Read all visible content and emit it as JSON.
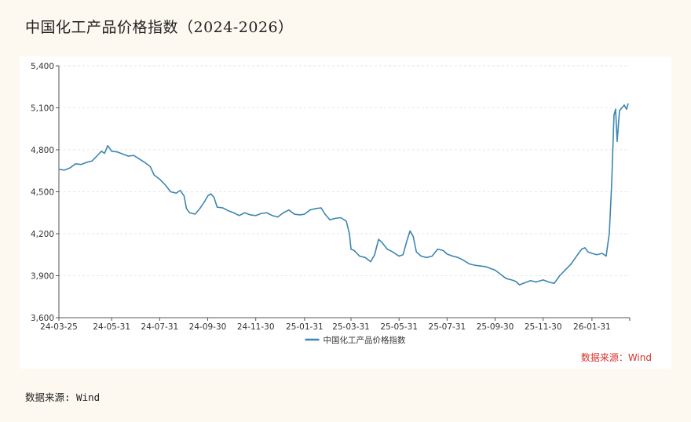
{
  "title": "中国化工产品价格指数（2024-2026）",
  "source_inner": "数据来源：Wind",
  "source_bottom": "数据来源: Wind",
  "colors": {
    "line": "#3d86b0",
    "axis": "#555555",
    "grid": "#e6e6e6",
    "source_inner": "#d9302c",
    "background": "#fdf8f0"
  },
  "chart_data": {
    "type": "line",
    "title": "",
    "xlabel": "",
    "ylabel": "",
    "ylim": [
      3600,
      5400
    ],
    "yticks": [
      3600,
      3900,
      4200,
      4500,
      4800,
      5100,
      5400
    ],
    "ytick_labels": [
      "3,600",
      "3,900",
      "4,200",
      "4,500",
      "4,800",
      "5,100",
      "5,400"
    ],
    "xlim": [
      "2024-03-25",
      "2026-03-20"
    ],
    "xtick_labels": [
      "24-03-25",
      "24-05-31",
      "24-07-31",
      "24-09-30",
      "24-11-30",
      "25-01-31",
      "25-03-31",
      "25-05-31",
      "25-07-31",
      "25-09-30",
      "25-11-30",
      "26-01-31"
    ],
    "xtick_dates": [
      "2024-03-25",
      "2024-05-31",
      "2024-07-31",
      "2024-09-30",
      "2024-11-30",
      "2025-01-31",
      "2025-03-31",
      "2025-05-31",
      "2025-07-31",
      "2025-09-30",
      "2025-11-30",
      "2026-01-31"
    ],
    "grid": true,
    "legend_position": "bottom-center",
    "series": [
      {
        "name": "中国化工产品价格指数",
        "color": "#3d86b0",
        "points": [
          [
            "2024-03-25",
            4660
          ],
          [
            "2024-04-01",
            4655
          ],
          [
            "2024-04-08",
            4670
          ],
          [
            "2024-04-15",
            4700
          ],
          [
            "2024-04-22",
            4695
          ],
          [
            "2024-04-29",
            4710
          ],
          [
            "2024-05-06",
            4720
          ],
          [
            "2024-05-13",
            4760
          ],
          [
            "2024-05-18",
            4790
          ],
          [
            "2024-05-22",
            4775
          ],
          [
            "2024-05-26",
            4830
          ],
          [
            "2024-05-31",
            4790
          ],
          [
            "2024-06-07",
            4785
          ],
          [
            "2024-06-14",
            4770
          ],
          [
            "2024-06-21",
            4755
          ],
          [
            "2024-06-28",
            4760
          ],
          [
            "2024-07-05",
            4735
          ],
          [
            "2024-07-12",
            4710
          ],
          [
            "2024-07-19",
            4680
          ],
          [
            "2024-07-24",
            4620
          ],
          [
            "2024-07-31",
            4590
          ],
          [
            "2024-08-07",
            4550
          ],
          [
            "2024-08-14",
            4500
          ],
          [
            "2024-08-21",
            4490
          ],
          [
            "2024-08-26",
            4510
          ],
          [
            "2024-08-31",
            4470
          ],
          [
            "2024-09-03",
            4380
          ],
          [
            "2024-09-07",
            4350
          ],
          [
            "2024-09-14",
            4340
          ],
          [
            "2024-09-20",
            4380
          ],
          [
            "2024-09-26",
            4430
          ],
          [
            "2024-09-30",
            4470
          ],
          [
            "2024-10-04",
            4485
          ],
          [
            "2024-10-08",
            4460
          ],
          [
            "2024-10-12",
            4390
          ],
          [
            "2024-10-19",
            4385
          ],
          [
            "2024-10-26",
            4365
          ],
          [
            "2024-11-02",
            4350
          ],
          [
            "2024-11-09",
            4330
          ],
          [
            "2024-11-16",
            4350
          ],
          [
            "2024-11-23",
            4335
          ],
          [
            "2024-11-30",
            4330
          ],
          [
            "2024-12-07",
            4345
          ],
          [
            "2024-12-14",
            4350
          ],
          [
            "2024-12-21",
            4330
          ],
          [
            "2024-12-28",
            4320
          ],
          [
            "2025-01-04",
            4350
          ],
          [
            "2025-01-11",
            4370
          ],
          [
            "2025-01-18",
            4340
          ],
          [
            "2025-01-25",
            4335
          ],
          [
            "2025-01-31",
            4340
          ],
          [
            "2025-02-07",
            4370
          ],
          [
            "2025-02-14",
            4380
          ],
          [
            "2025-02-21",
            4385
          ],
          [
            "2025-02-26",
            4340
          ],
          [
            "2025-03-04",
            4300
          ],
          [
            "2025-03-11",
            4310
          ],
          [
            "2025-03-18",
            4315
          ],
          [
            "2025-03-25",
            4290
          ],
          [
            "2025-03-29",
            4200
          ],
          [
            "2025-03-31",
            4090
          ],
          [
            "2025-04-04",
            4080
          ],
          [
            "2025-04-11",
            4040
          ],
          [
            "2025-04-18",
            4030
          ],
          [
            "2025-04-25",
            4000
          ],
          [
            "2025-04-30",
            4050
          ],
          [
            "2025-05-05",
            4160
          ],
          [
            "2025-05-09",
            4140
          ],
          [
            "2025-05-16",
            4090
          ],
          [
            "2025-05-23",
            4070
          ],
          [
            "2025-05-31",
            4040
          ],
          [
            "2025-06-05",
            4050
          ],
          [
            "2025-06-10",
            4150
          ],
          [
            "2025-06-14",
            4220
          ],
          [
            "2025-06-18",
            4180
          ],
          [
            "2025-06-22",
            4070
          ],
          [
            "2025-06-28",
            4040
          ],
          [
            "2025-07-05",
            4030
          ],
          [
            "2025-07-12",
            4040
          ],
          [
            "2025-07-19",
            4090
          ],
          [
            "2025-07-26",
            4080
          ],
          [
            "2025-07-31",
            4055
          ],
          [
            "2025-08-07",
            4040
          ],
          [
            "2025-08-14",
            4030
          ],
          [
            "2025-08-21",
            4010
          ],
          [
            "2025-08-28",
            3985
          ],
          [
            "2025-09-04",
            3975
          ],
          [
            "2025-09-11",
            3970
          ],
          [
            "2025-09-18",
            3965
          ],
          [
            "2025-09-25",
            3950
          ],
          [
            "2025-09-30",
            3940
          ],
          [
            "2025-10-07",
            3910
          ],
          [
            "2025-10-14",
            3880
          ],
          [
            "2025-10-21",
            3870
          ],
          [
            "2025-10-26",
            3860
          ],
          [
            "2025-10-31",
            3835
          ],
          [
            "2025-11-07",
            3850
          ],
          [
            "2025-11-14",
            3865
          ],
          [
            "2025-11-21",
            3855
          ],
          [
            "2025-11-30",
            3870
          ],
          [
            "2025-12-07",
            3855
          ],
          [
            "2025-12-14",
            3845
          ],
          [
            "2025-12-21",
            3900
          ],
          [
            "2025-12-28",
            3940
          ],
          [
            "2026-01-04",
            3980
          ],
          [
            "2026-01-09",
            4020
          ],
          [
            "2026-01-14",
            4060
          ],
          [
            "2026-01-18",
            4090
          ],
          [
            "2026-01-22",
            4100
          ],
          [
            "2026-01-26",
            4070
          ],
          [
            "2026-01-31",
            4060
          ],
          [
            "2026-02-06",
            4050
          ],
          [
            "2026-02-13",
            4060
          ],
          [
            "2026-02-18",
            4040
          ],
          [
            "2026-02-22",
            4200
          ],
          [
            "2026-02-25",
            4550
          ],
          [
            "2026-02-28",
            5050
          ],
          [
            "2026-03-02",
            5090
          ],
          [
            "2026-03-04",
            4860
          ],
          [
            "2026-03-07",
            5080
          ],
          [
            "2026-03-10",
            5100
          ],
          [
            "2026-03-13",
            5120
          ],
          [
            "2026-03-16",
            5090
          ],
          [
            "2026-03-18",
            5130
          ]
        ]
      }
    ]
  }
}
